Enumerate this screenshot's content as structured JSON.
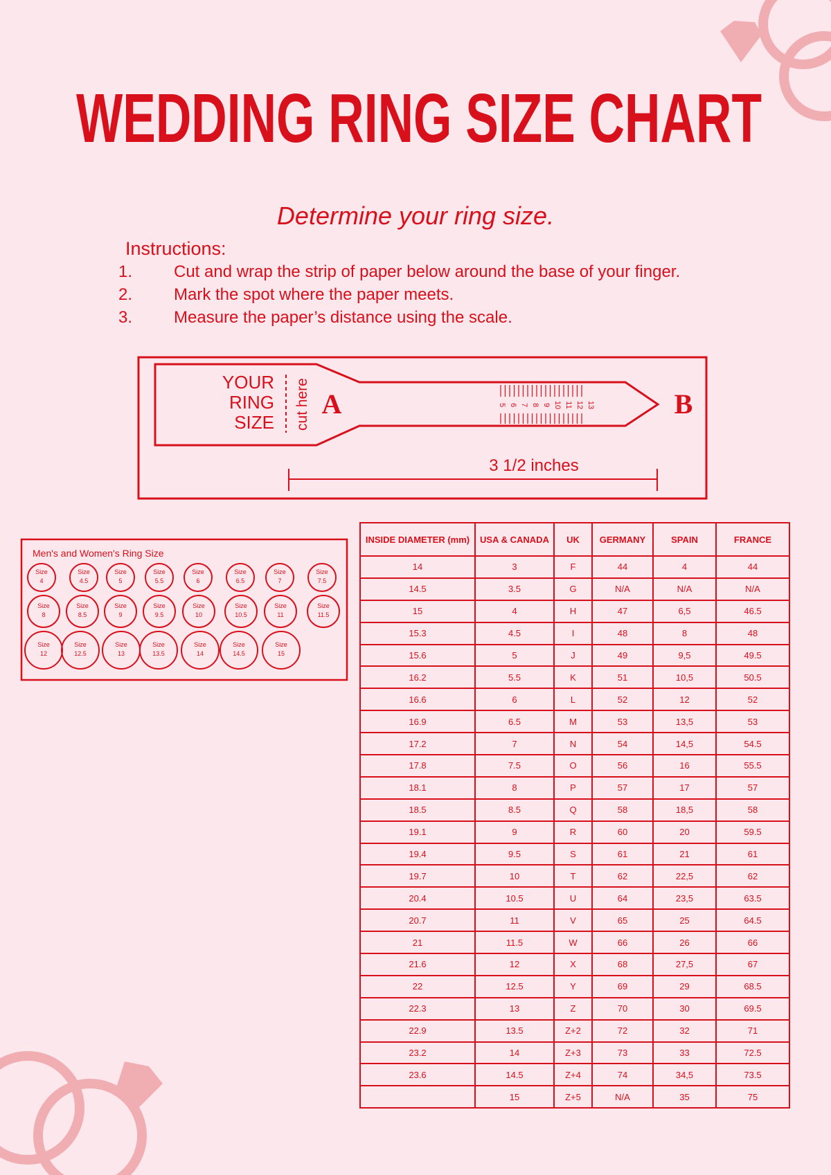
{
  "title": "WEDDING RING SIZE CHART",
  "subtitle": "Determine your ring size.",
  "instructions": {
    "heading": "Instructions:",
    "steps": [
      {
        "num": "1.",
        "text": "Cut and wrap the strip of paper below around the base of your finger."
      },
      {
        "num": "2.",
        "text": "Mark the spot where the paper meets."
      },
      {
        "num": "3.",
        "text": "Measure the paper’s distance using the scale."
      }
    ]
  },
  "strip": {
    "label_lines": [
      "YOUR",
      "RING",
      "SIZE"
    ],
    "cut_here": "cut here",
    "a_label": "A",
    "b_label": "B",
    "scale": [
      "5",
      "6",
      "7",
      "8",
      "9",
      "10",
      "11",
      "12",
      "13"
    ],
    "length": "3 1/2 inches"
  },
  "ring_sizes": {
    "title": "Men's and Women's Ring Size",
    "word": "Size",
    "rows": [
      [
        "4",
        "4.5",
        "5",
        "5.5",
        "6",
        "6.5",
        "7",
        "7.5"
      ],
      [
        "8",
        "8.5",
        "9",
        "9.5",
        "10",
        "10.5",
        "11",
        "11.5"
      ],
      [
        "12",
        "12.5",
        "13",
        "13.5",
        "14",
        "14.5",
        "15"
      ]
    ]
  },
  "table": {
    "headers": [
      "INSIDE DIAMETER (mm)",
      "USA & CANADA",
      "UK",
      "GERMANY",
      "SPAIN",
      "FRANCE"
    ],
    "rows": [
      [
        "14",
        "3",
        "F",
        "44",
        "4",
        "44"
      ],
      [
        "14.5",
        "3.5",
        "G",
        "N/A",
        "N/A",
        "N/A"
      ],
      [
        "15",
        "4",
        "H",
        "47",
        "6,5",
        "46.5"
      ],
      [
        "15.3",
        "4.5",
        "I",
        "48",
        "8",
        "48"
      ],
      [
        "15.6",
        "5",
        "J",
        "49",
        "9,5",
        "49.5"
      ],
      [
        "16.2",
        "5.5",
        "K",
        "51",
        "10,5",
        "50.5"
      ],
      [
        "16.6",
        "6",
        "L",
        "52",
        "12",
        "52"
      ],
      [
        "16.9",
        "6.5",
        "M",
        "53",
        "13,5",
        "53"
      ],
      [
        "17.2",
        "7",
        "N",
        "54",
        "14,5",
        "54.5"
      ],
      [
        "17.8",
        "7.5",
        "O",
        "56",
        "16",
        "55.5"
      ],
      [
        "18.1",
        "8",
        "P",
        "57",
        "17",
        "57"
      ],
      [
        "18.5",
        "8.5",
        "Q",
        "58",
        "18,5",
        "58"
      ],
      [
        "19.1",
        "9",
        "R",
        "60",
        "20",
        "59.5"
      ],
      [
        "19.4",
        "9.5",
        "S",
        "61",
        "21",
        "61"
      ],
      [
        "19.7",
        "10",
        "T",
        "62",
        "22,5",
        "62"
      ],
      [
        "20.4",
        "10.5",
        "U",
        "64",
        "23,5",
        "63.5"
      ],
      [
        "20.7",
        "11",
        "V",
        "65",
        "25",
        "64.5"
      ],
      [
        "21",
        "11.5",
        "W",
        "66",
        "26",
        "66"
      ],
      [
        "21.6",
        "12",
        "X",
        "68",
        "27,5",
        "67"
      ],
      [
        "22",
        "12.5",
        "Y",
        "69",
        "29",
        "68.5"
      ],
      [
        "22.3",
        "13",
        "Z",
        "70",
        "30",
        "69.5"
      ],
      [
        "22.9",
        "13.5",
        "Z+2",
        "72",
        "32",
        "71"
      ],
      [
        "23.2",
        "14",
        "Z+3",
        "73",
        "33",
        "72.5"
      ],
      [
        "23.6",
        "14.5",
        "Z+4",
        "74",
        "34,5",
        "73.5"
      ],
      [
        null,
        "15",
        "Z+5",
        "N/A",
        "35",
        "75"
      ]
    ]
  }
}
